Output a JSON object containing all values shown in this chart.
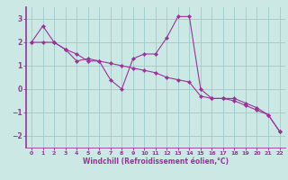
{
  "xlabel": "Windchill (Refroidissement éolien,°C)",
  "bg_color": "#cce8e4",
  "line_color": "#993399",
  "grid_color": "#99cccc",
  "curve1_x": [
    0,
    1,
    2,
    3,
    4,
    5,
    6,
    7,
    8,
    9,
    10,
    11,
    12,
    13,
    14,
    15,
    16,
    17,
    18,
    19,
    20,
    21,
    22
  ],
  "curve1_y": [
    2.0,
    2.7,
    2.0,
    1.7,
    1.2,
    1.3,
    1.2,
    0.4,
    0.0,
    1.3,
    1.5,
    1.5,
    2.2,
    3.1,
    3.1,
    0.0,
    -0.4,
    -0.4,
    -0.4,
    -0.6,
    -0.8,
    -1.1,
    -1.8
  ],
  "curve2_x": [
    0,
    1,
    2,
    3,
    4,
    5,
    6,
    7,
    8,
    9,
    10,
    11,
    12,
    13,
    14,
    15,
    16,
    17,
    18,
    19,
    20,
    21,
    22
  ],
  "curve2_y": [
    2.0,
    2.0,
    2.0,
    1.7,
    1.5,
    1.2,
    1.2,
    1.1,
    1.0,
    0.9,
    0.8,
    0.7,
    0.5,
    0.4,
    0.3,
    -0.3,
    -0.4,
    -0.4,
    -0.5,
    -0.7,
    -0.9,
    -1.1,
    -1.8
  ],
  "ylim": [
    -2.5,
    3.5
  ],
  "xlim": [
    -0.5,
    22.5
  ],
  "yticks": [
    -2,
    -1,
    0,
    1,
    2,
    3
  ],
  "xticks": [
    0,
    1,
    2,
    3,
    4,
    5,
    6,
    7,
    8,
    9,
    10,
    11,
    12,
    13,
    14,
    15,
    16,
    17,
    18,
    19,
    20,
    21,
    22
  ]
}
